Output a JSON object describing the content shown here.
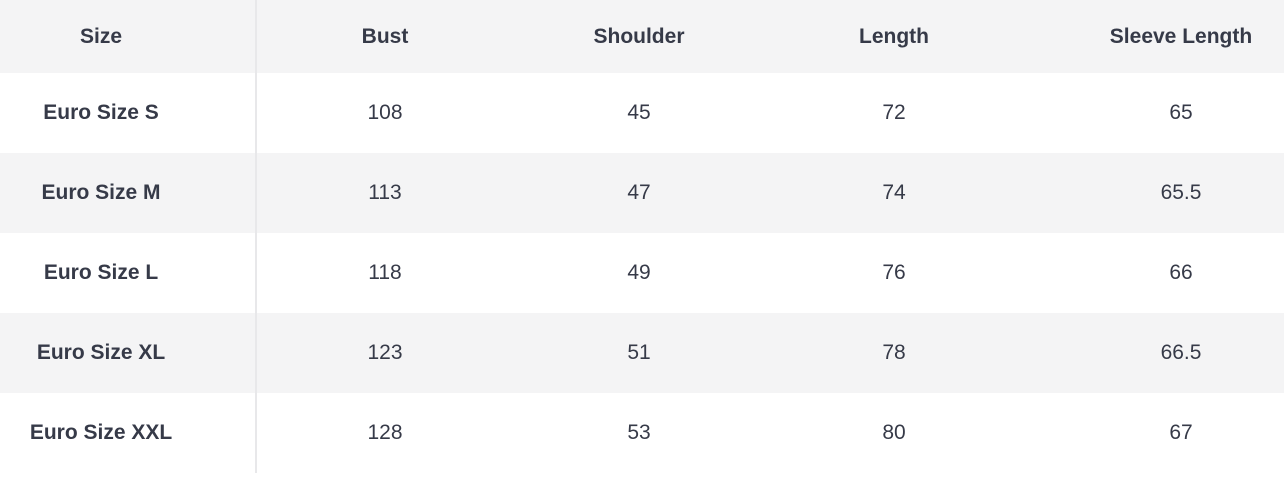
{
  "table": {
    "headers": [
      "Size",
      "Bust",
      "Shoulder",
      "Length",
      "Sleeve Length"
    ],
    "rows": [
      [
        "Euro Size S",
        "108",
        "45",
        "72",
        "65"
      ],
      [
        "Euro Size M",
        "113",
        "47",
        "74",
        "65.5"
      ],
      [
        "Euro Size L",
        "118",
        "49",
        "76",
        "66"
      ],
      [
        "Euro Size XL",
        "123",
        "51",
        "78",
        "66.5"
      ],
      [
        "Euro Size XXL",
        "128",
        "53",
        "80",
        "67"
      ]
    ]
  }
}
